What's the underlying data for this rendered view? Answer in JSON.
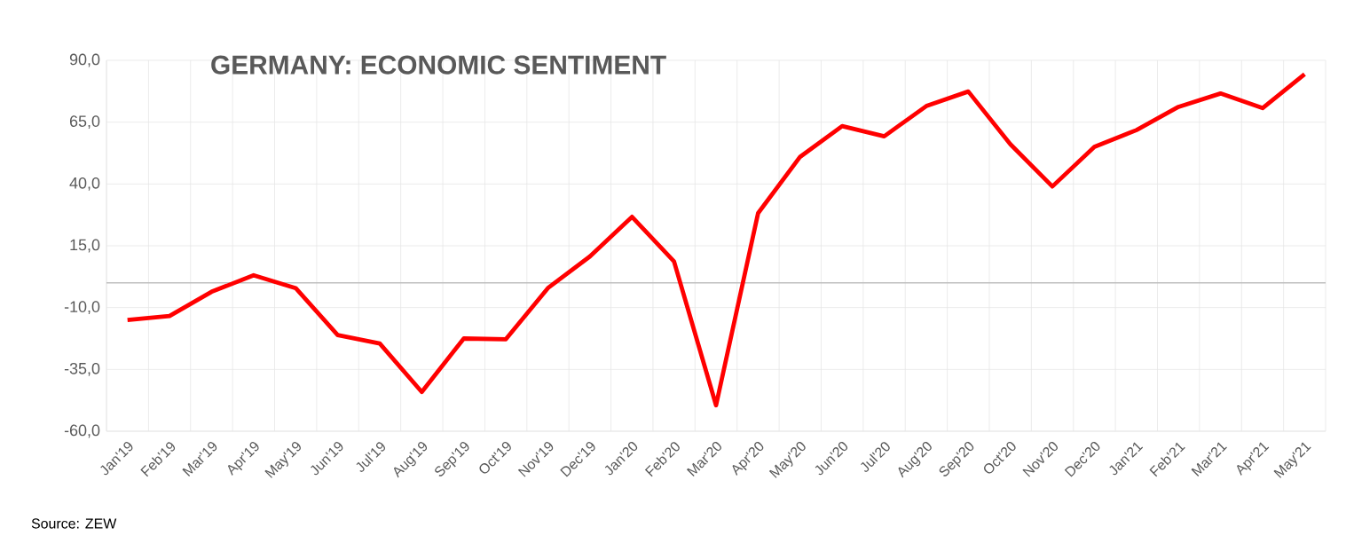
{
  "chart_data": {
    "type": "line",
    "title": "GERMANY: ECONOMIC SENTIMENT",
    "categories": [
      "Jan'19",
      "Feb'19",
      "Mar'19",
      "Apr'19",
      "May'19",
      "Jun'19",
      "Jul'19",
      "Aug'19",
      "Sep'19",
      "Oct'19",
      "Nov'19",
      "Dec'19",
      "Jan'20",
      "Feb'20",
      "Mar'20",
      "Apr'20",
      "May'20",
      "Jun'20",
      "Jul'20",
      "Aug'20",
      "Sep'20",
      "Oct'20",
      "Nov'20",
      "Dec'20",
      "Jan'21",
      "Feb'21",
      "Mar'21",
      "Apr'21",
      "May'21"
    ],
    "values": [
      -15.0,
      -13.4,
      -3.6,
      3.1,
      -2.1,
      -21.1,
      -24.5,
      -44.1,
      -22.5,
      -22.8,
      -2.1,
      10.7,
      26.7,
      8.7,
      -49.5,
      28.2,
      51.0,
      63.4,
      59.3,
      71.5,
      77.4,
      56.1,
      39.0,
      55.0,
      61.8,
      71.2,
      76.6,
      70.7,
      84.4
    ],
    "color": "#ff0000",
    "ylim": [
      -60,
      90
    ],
    "yticks": [
      {
        "value": -60,
        "label": "-60,0"
      },
      {
        "value": -35,
        "label": "-35,0"
      },
      {
        "value": -10,
        "label": "-10,0"
      },
      {
        "value": 15,
        "label": "15,0"
      },
      {
        "value": 40,
        "label": "40,0"
      },
      {
        "value": 65,
        "label": "65,0"
      },
      {
        "value": 90,
        "label": "90,0"
      }
    ],
    "grid": true,
    "marker": "none",
    "line_style": "solid",
    "ref_lines": [
      {
        "axis": "y",
        "value": 0,
        "color": "#bfbfbf"
      }
    ],
    "annotations": [
      "Source: ZEW"
    ]
  }
}
